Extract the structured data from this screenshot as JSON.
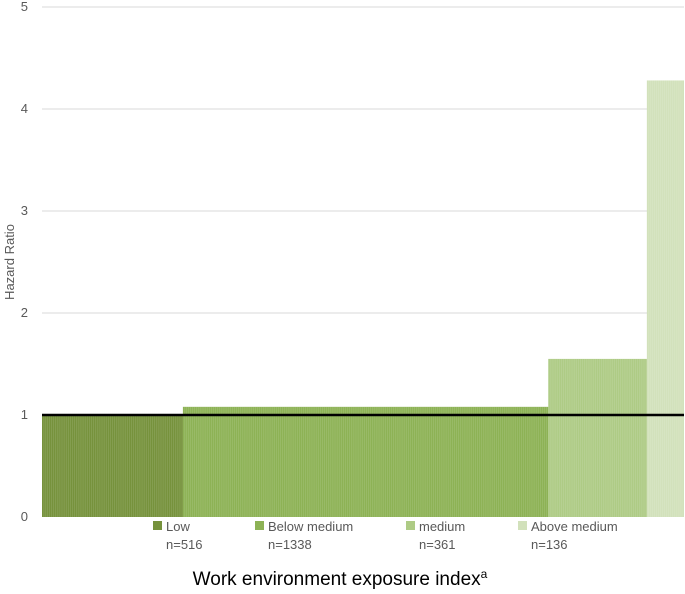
{
  "chart_data": {
    "type": "bar",
    "variable_width": true,
    "title": "",
    "xlabel": "Work environment exposure index",
    "xlabel_superscript": "a",
    "ylabel": "Hazard Ratio",
    "ylim": [
      0,
      5
    ],
    "yticks": [
      0,
      1,
      2,
      3,
      4,
      5
    ],
    "grid": true,
    "reference_line": 1,
    "legend_position": "bottom",
    "categories": [
      "Low",
      "Below medium",
      "medium",
      "Above medium"
    ],
    "n_labels": [
      "n=516",
      "n=1338",
      "n=361",
      "n=136"
    ],
    "n": [
      516,
      1338,
      361,
      136
    ],
    "values": [
      1.0,
      1.08,
      1.55,
      4.28
    ],
    "colors": [
      "#76923c",
      "#8db255",
      "#aecb85",
      "#d2e1bb"
    ]
  }
}
